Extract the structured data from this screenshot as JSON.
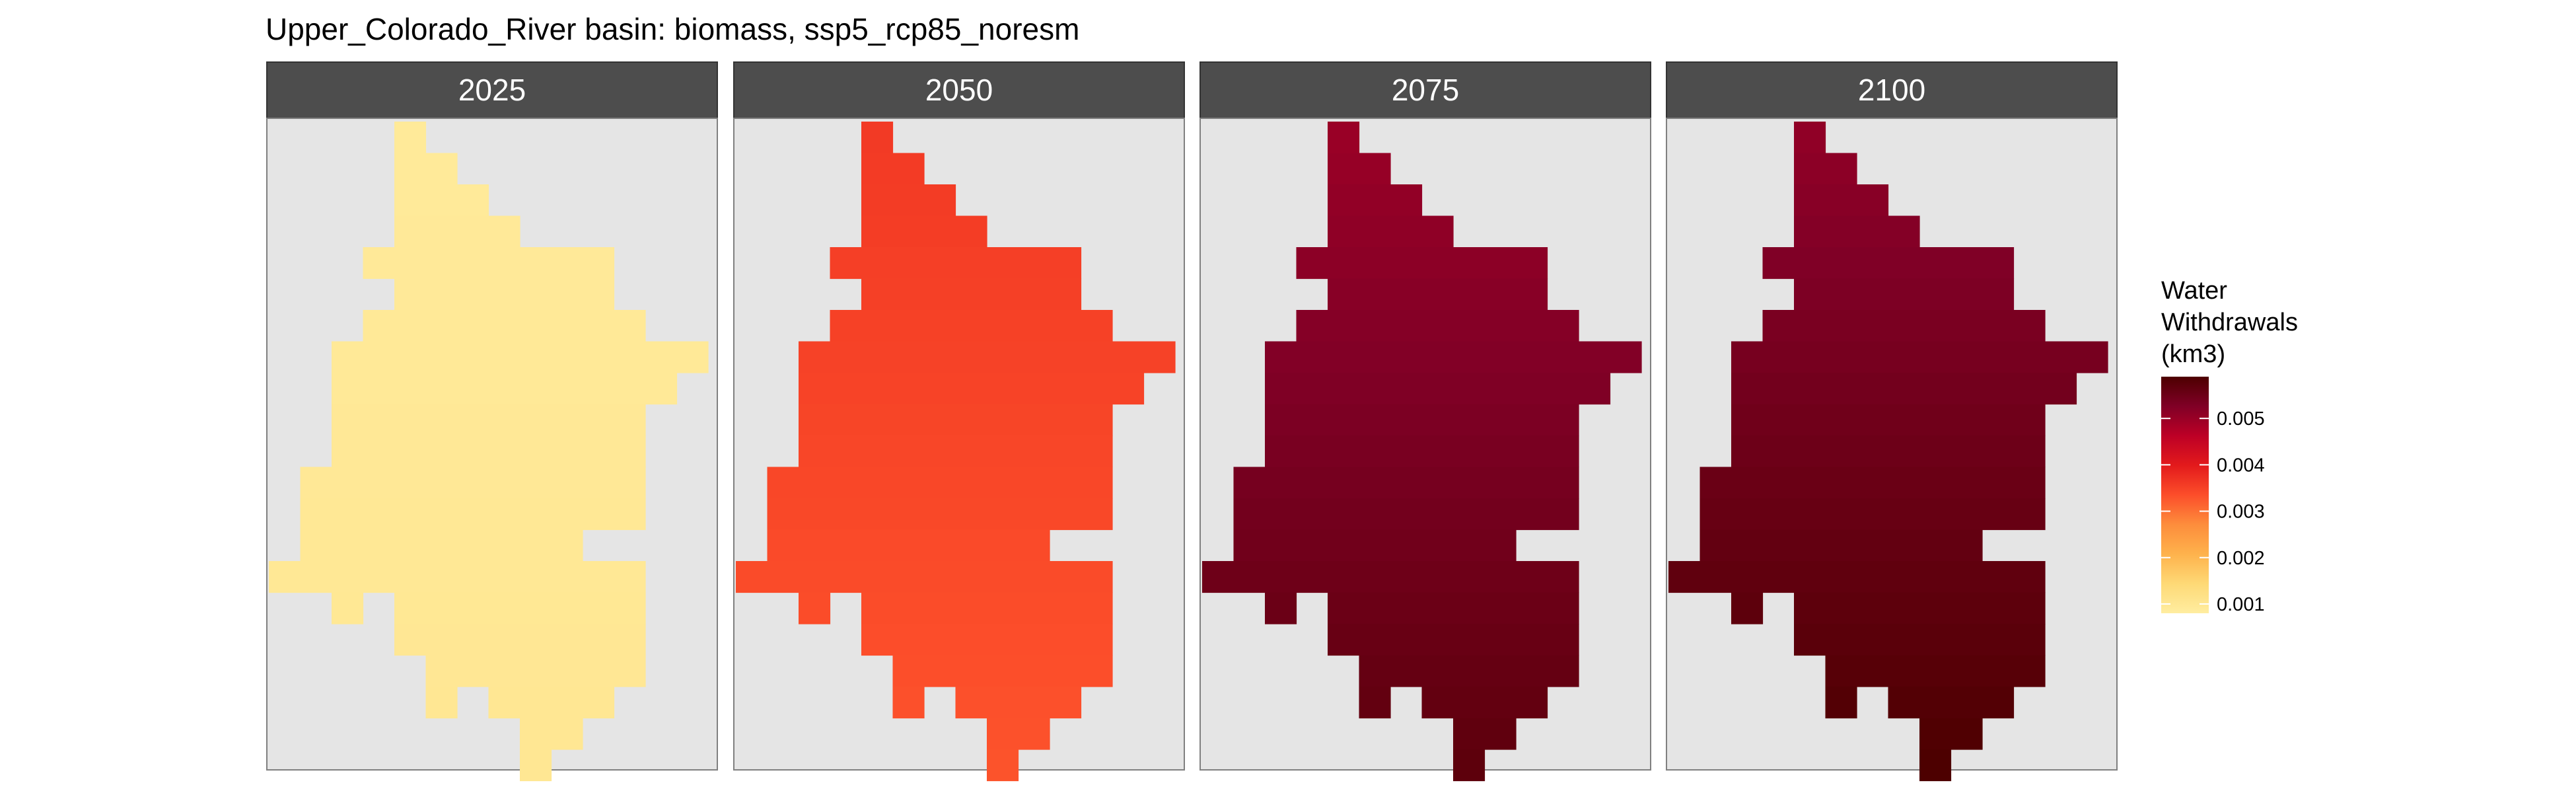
{
  "chart_data": {
    "type": "heatmap",
    "title": "Upper_Colorado_River basin: biomass, ssp5_rcp85_noresm",
    "facets": [
      {
        "label": "2025",
        "value_top": 0.0009,
        "value_bottom": 0.001
      },
      {
        "label": "2050",
        "value_top": 0.0036,
        "value_bottom": 0.0033
      },
      {
        "label": "2075",
        "value_top": 0.005,
        "value_bottom": 0.0057
      },
      {
        "label": "2100",
        "value_top": 0.0051,
        "value_bottom": 0.0059
      }
    ],
    "grid_rows": [
      [
        4,
        4
      ],
      [
        4,
        5
      ],
      [
        4,
        6
      ],
      [
        4,
        7
      ],
      [
        3,
        10
      ],
      [
        4,
        10
      ],
      [
        3,
        11
      ],
      [
        2,
        13
      ],
      [
        2,
        12
      ],
      [
        2,
        11
      ],
      [
        2,
        11
      ],
      [
        1,
        11
      ],
      [
        1,
        11
      ],
      [
        1,
        9
      ],
      [
        0,
        11
      ],
      [
        2,
        2
      ],
      [
        4,
        11
      ],
      [
        5,
        11
      ],
      [
        5,
        10
      ],
      [
        8,
        9
      ],
      [
        8,
        8
      ]
    ],
    "grid_row_breaks": {
      "15": [
        [
          2,
          2
        ],
        [
          4,
          11
        ]
      ],
      "18": [
        [
          5,
          5
        ],
        [
          7,
          10
        ]
      ],
      "19": [
        [
          8,
          9
        ]
      ]
    },
    "legend": {
      "title_lines": [
        "Water",
        "Withdrawals",
        "(km3)"
      ],
      "ticks": [
        "0.001",
        "0.002",
        "0.003",
        "0.004",
        "0.005"
      ],
      "tick_values": [
        0.001,
        0.002,
        0.003,
        0.004,
        0.005
      ],
      "range": [
        0.0008,
        0.0059
      ]
    },
    "colors": {
      "panel_background": "#e5e5e5",
      "strip_background": "#4d4d4d",
      "strip_text": "#ffffff",
      "panel_border": "#808080",
      "scale": [
        "#ffeda0",
        "#fed976",
        "#feb24c",
        "#fd8d3c",
        "#fc4e2a",
        "#e31a1c",
        "#bd0026",
        "#800026",
        "#4d0000"
      ]
    }
  }
}
